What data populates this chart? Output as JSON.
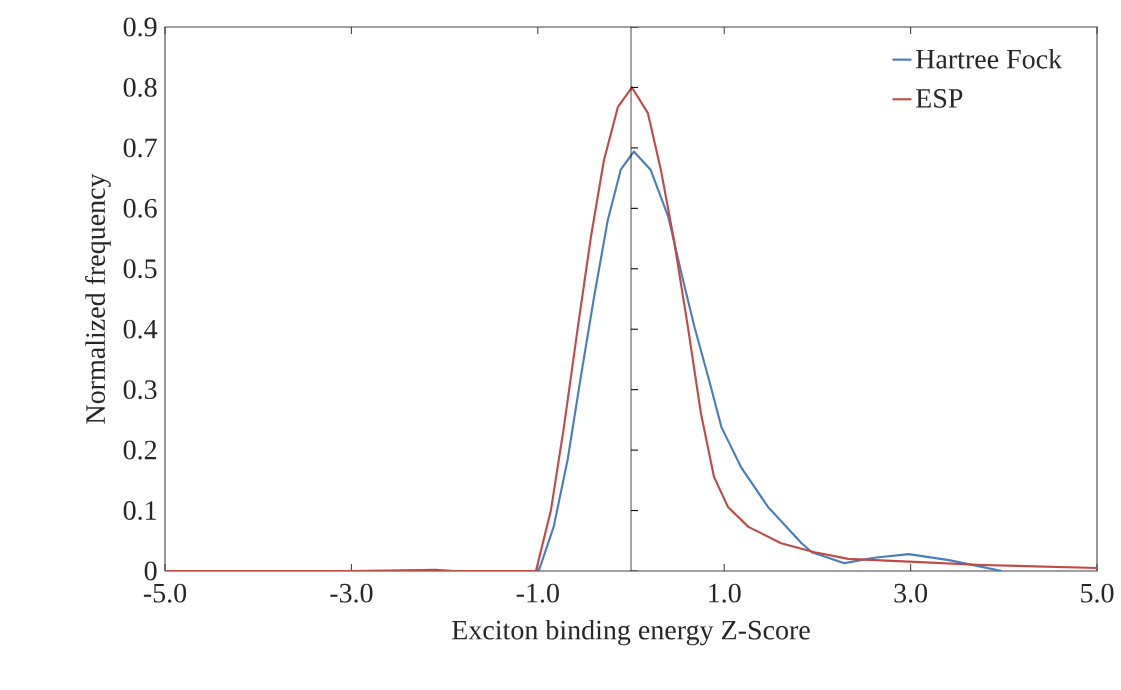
{
  "chart_data": {
    "type": "line",
    "xlabel": "Exciton binding energy  Z-Score",
    "ylabel": "Normalized frequency",
    "xlim": [
      -5,
      5
    ],
    "ylim": [
      0,
      0.9
    ],
    "xticks": [
      {
        "value": -5,
        "label": "-5.0"
      },
      {
        "value": -3,
        "label": "-3.0"
      },
      {
        "value": -1,
        "label": "-1.0"
      },
      {
        "value": 1,
        "label": "1.0"
      },
      {
        "value": 3,
        "label": "3.0"
      },
      {
        "value": 5,
        "label": "5.0"
      }
    ],
    "yticks": [
      0,
      0.1,
      0.2,
      0.3,
      0.4,
      0.5,
      0.6,
      0.7,
      0.8,
      0.9
    ],
    "legend": "top right",
    "ref_lines": [
      {
        "axis": "x",
        "value": 0,
        "color": "#000000"
      }
    ],
    "series": [
      {
        "name": "Hartree Fock",
        "color": "#4a7ebb",
        "x": [
          -0.99,
          -0.83,
          -0.68,
          -0.54,
          -0.4,
          -0.25,
          -0.11,
          0.03,
          0.21,
          0.4,
          0.54,
          0.68,
          0.83,
          0.97,
          1.18,
          1.47,
          1.83,
          1.94,
          2.29,
          2.61,
          2.98,
          3.41,
          3.98
        ],
        "values": [
          0,
          0.073,
          0.184,
          0.32,
          0.45,
          0.58,
          0.664,
          0.694,
          0.664,
          0.586,
          0.493,
          0.404,
          0.32,
          0.238,
          0.172,
          0.106,
          0.046,
          0.031,
          0.013,
          0.022,
          0.028,
          0.018,
          0
        ]
      },
      {
        "name": "ESP",
        "color": "#be4b48",
        "x": [
          -5,
          -3,
          -2.1,
          -1.9,
          -1.02,
          -0.86,
          -0.72,
          -0.57,
          -0.43,
          -0.29,
          -0.14,
          0.01,
          0.18,
          0.32,
          0.46,
          0.61,
          0.75,
          0.89,
          1.04,
          1.26,
          1.61,
          1.97,
          2.33,
          3.04,
          3.76,
          5
        ],
        "values": [
          0,
          0,
          0.002,
          0,
          0,
          0.1,
          0.238,
          0.404,
          0.553,
          0.68,
          0.768,
          0.8,
          0.758,
          0.664,
          0.548,
          0.404,
          0.261,
          0.156,
          0.106,
          0.073,
          0.046,
          0.031,
          0.02,
          0.015,
          0.01,
          0.005
        ]
      }
    ]
  }
}
